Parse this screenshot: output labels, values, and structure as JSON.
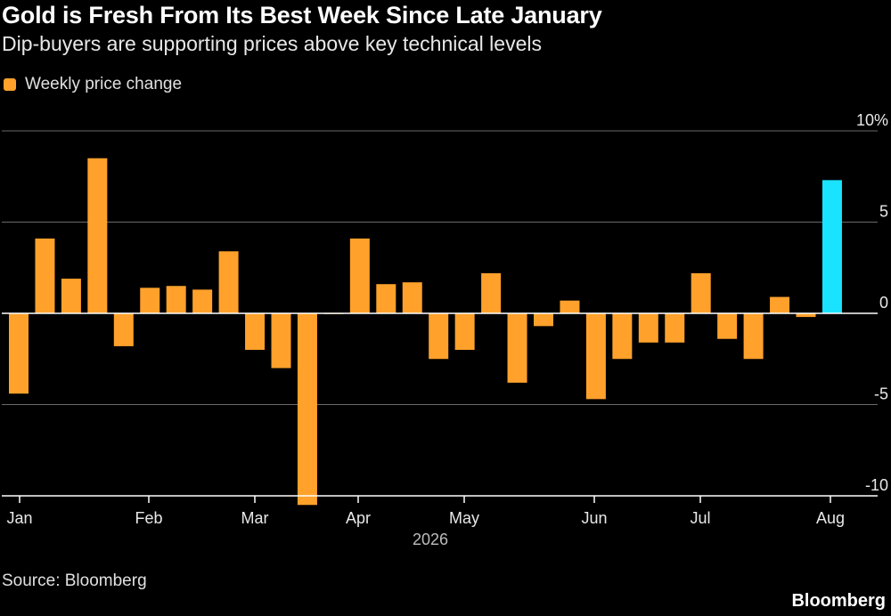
{
  "chart_data": {
    "type": "bar",
    "title": "Gold is Fresh From Its Best Week Since Late January",
    "subtitle": "Dip-buyers are supporting prices above key technical levels",
    "legend": [
      {
        "label": "Weekly price change",
        "color": "#ffa12b"
      }
    ],
    "year_label": "2026",
    "ylim": [
      -10,
      10
    ],
    "yticks": [
      10,
      5,
      0,
      -5,
      -10
    ],
    "ytick_labels": [
      "10%",
      "5",
      "0",
      "-5",
      "-10"
    ],
    "xticks": [
      "Jan",
      "Feb",
      "Mar",
      "Apr",
      "May",
      "Jun",
      "Jul",
      "Aug"
    ],
    "grid": true,
    "colors": {
      "default": "#ffa12b",
      "highlight": "#19e3ff",
      "grid": "#6a6a6a",
      "axis": "#ffffff"
    },
    "values": [
      -4.4,
      4.1,
      1.9,
      8.5,
      -1.8,
      1.4,
      1.5,
      1.3,
      3.4,
      -2.0,
      -3.0,
      -10.5,
      0.0,
      4.1,
      1.6,
      1.7,
      -2.5,
      -2.0,
      2.2,
      -3.8,
      -0.7,
      0.7,
      -4.7,
      -2.5,
      -1.6,
      -1.6,
      2.2,
      -1.4,
      -2.5,
      0.9,
      -0.2,
      7.3
    ],
    "highlight_index": 31
  },
  "source": "Source: Bloomberg",
  "brand": "Bloomberg"
}
